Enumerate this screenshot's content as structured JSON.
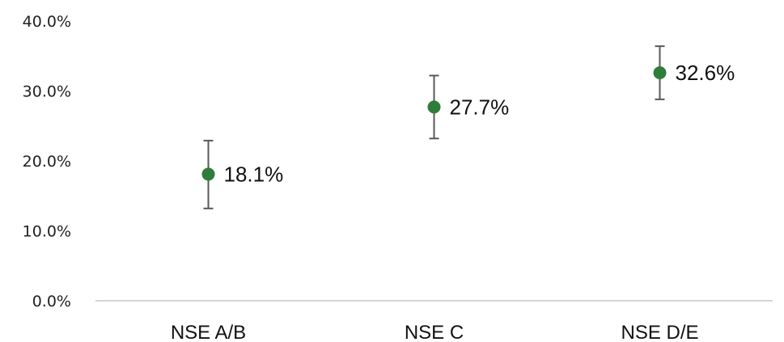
{
  "chart_data": {
    "type": "scatter",
    "title": "",
    "xlabel": "",
    "ylabel": "",
    "categories": [
      "NSE A/B",
      "NSE C",
      "NSE D/E"
    ],
    "series": [
      {
        "values": [
          18.1,
          27.7,
          32.6
        ],
        "error_low": [
          13.2,
          23.2,
          28.8
        ],
        "error_high": [
          22.9,
          32.2,
          36.4
        ],
        "data_labels": [
          "18.1%",
          "27.7%",
          "32.6%"
        ],
        "color": "#2e7d3a"
      }
    ],
    "ylim": [
      0,
      40
    ],
    "yticks": [
      0,
      10,
      20,
      30,
      40
    ],
    "ytick_labels": [
      "0.0%",
      "10.0%",
      "20.0%",
      "30.0%",
      "40.0%"
    ],
    "grid": false,
    "legend": "none",
    "axis_color": "#c9c9c9",
    "error_bar_color": "#595959"
  }
}
